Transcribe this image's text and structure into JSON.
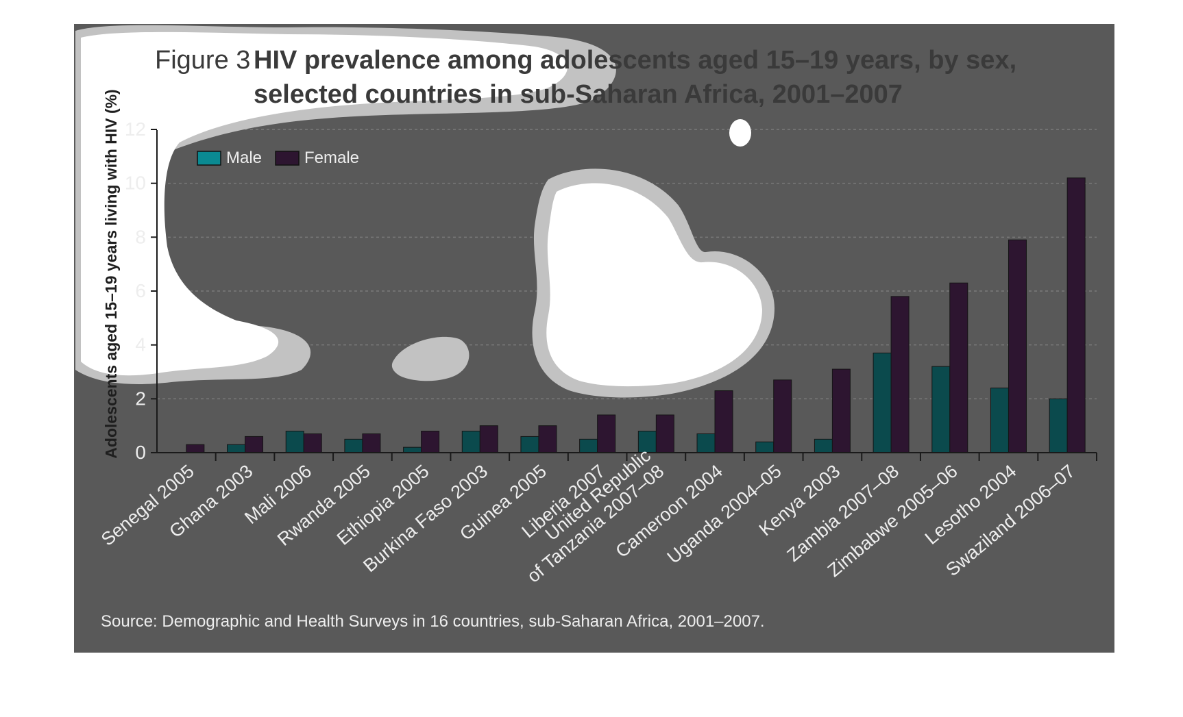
{
  "colors": {
    "panel": "#595959",
    "male": "#0b4a4d",
    "male_legend": "#0a8a92",
    "female": "#2d1530",
    "text_light": "#ededed",
    "text_dark": "#2a2a2a",
    "grid": "#7a7a7a",
    "axis": "#1a1a1a",
    "blob_fill": "#ffffff",
    "blob_halo": "#c2c2c2"
  },
  "chart_data": {
    "type": "bar",
    "title_prefix": "Figure 3",
    "title_line1": "HIV prevalence among adolescents aged 15–19 years, by sex,",
    "title_line2": "selected countries in sub-Saharan Africa, 2001–2007",
    "ylabel": "Adolescents aged 15–19 years living with HIV (%)",
    "xlabel": "",
    "ylim": [
      0,
      12
    ],
    "yticks": [
      "0",
      "2",
      "4",
      "6",
      "8",
      "10",
      "12"
    ],
    "grid": true,
    "legend_position": "top-left",
    "categories": [
      [
        "Senegal 2005"
      ],
      [
        "Ghana 2003"
      ],
      [
        "Mali 2006"
      ],
      [
        "Rwanda 2005"
      ],
      [
        "Ethiopia 2005"
      ],
      [
        "Burkina Faso 2003"
      ],
      [
        "Guinea 2005"
      ],
      [
        "Liberia 2007"
      ],
      [
        "United Republic",
        "of Tanzania 2007–08"
      ],
      [
        "Cameroon 2004"
      ],
      [
        "Uganda 2004–05"
      ],
      [
        "Kenya 2003"
      ],
      [
        "Zambia 2007–08"
      ],
      [
        "Zimbabwe 2005–06"
      ],
      [
        "Lesotho 2004"
      ],
      [
        "Swaziland 2006–07"
      ]
    ],
    "series": [
      {
        "name": "Male",
        "values": [
          0.0,
          0.3,
          0.8,
          0.5,
          0.2,
          0.8,
          0.6,
          0.5,
          0.8,
          0.7,
          0.4,
          0.5,
          3.7,
          3.2,
          2.4,
          2.0
        ]
      },
      {
        "name": "Female",
        "values": [
          0.3,
          0.6,
          0.7,
          0.7,
          0.8,
          1.0,
          1.0,
          1.4,
          1.4,
          2.3,
          2.7,
          3.1,
          5.8,
          6.3,
          7.9,
          10.2
        ]
      }
    ],
    "source": "Source: Demographic and Health Surveys in 16 countries, sub-Saharan Africa, 2001–2007."
  }
}
